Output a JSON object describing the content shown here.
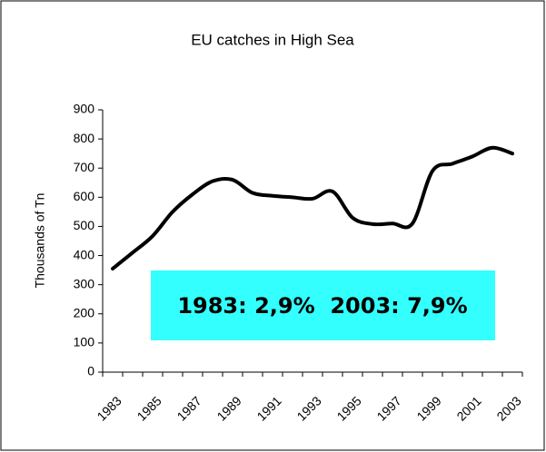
{
  "chart_data": {
    "type": "line",
    "title": "EU catches in High Sea",
    "y_label": "Thousands of Tn",
    "annotation": "1983: 2,9%  2003: 7,9%",
    "annotation_color": "#33ffff",
    "categories": [
      "1983",
      null,
      "1985",
      null,
      "1987",
      null,
      "1989",
      null,
      "1991",
      null,
      "1993",
      null,
      "1995",
      null,
      "1997",
      null,
      "1999",
      null,
      "2001",
      null,
      "2003"
    ],
    "series": [
      {
        "name": null,
        "color": "#000000",
        "values": [
          355,
          410,
          467,
          550,
          610,
          655,
          660,
          615,
          605,
          600,
          595,
          620,
          530,
          508,
          510,
          510,
          690,
          715,
          740,
          770,
          750
        ]
      }
    ],
    "ylim": [
      0,
      900
    ],
    "yticks": [
      0,
      100,
      200,
      300,
      400,
      500,
      600,
      700,
      800,
      900
    ]
  }
}
